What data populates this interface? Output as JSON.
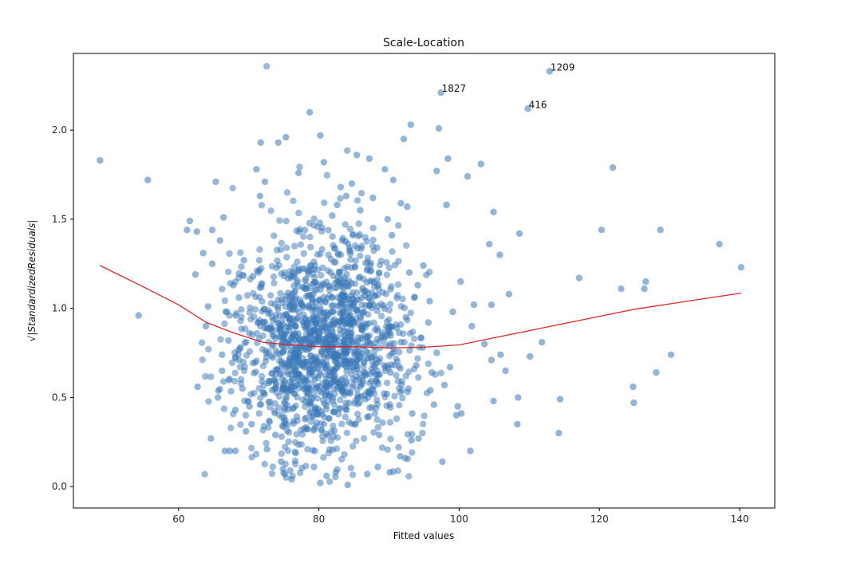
{
  "chart_data": {
    "type": "scatter",
    "title": "Scale-Location",
    "xlabel": "Fitted values",
    "ylabel": "√|StandardizedResiduals|",
    "xlim": [
      45,
      145
    ],
    "ylim": [
      -0.12,
      2.43
    ],
    "xticks": [
      60,
      80,
      100,
      120,
      140
    ],
    "xtick_labels": [
      "60",
      "80",
      "100",
      "120",
      "140"
    ],
    "yticks": [
      0.0,
      0.5,
      1.0,
      1.5,
      2.0
    ],
    "ytick_labels": [
      "0.0",
      "0.5",
      "1.0",
      "1.5",
      "2.0"
    ],
    "grid": false,
    "colors": {
      "points": "#3a78b8",
      "lowess": "#d62728",
      "axes": "#000000"
    },
    "series": [
      {
        "kind": "scatter",
        "points": [
          [
            48.8,
            1.83
          ],
          [
            55.6,
            1.72
          ],
          [
            54.3,
            0.96
          ],
          [
            61.6,
            1.49
          ],
          [
            61.2,
            1.44
          ],
          [
            62.6,
            1.43
          ],
          [
            64.8,
            1.44
          ],
          [
            65.3,
            1.71
          ],
          [
            62.4,
            1.19
          ],
          [
            63.5,
            1.31
          ],
          [
            64.2,
            1.01
          ],
          [
            63.9,
            0.9
          ],
          [
            62.7,
            0.56
          ],
          [
            64.8,
            1.25
          ],
          [
            66.4,
            1.51
          ],
          [
            65.9,
            1.38
          ],
          [
            64.6,
            0.27
          ],
          [
            66.6,
            0.2
          ],
          [
            67.3,
            0.2
          ],
          [
            68.1,
            0.2
          ],
          [
            65.6,
            0.5
          ],
          [
            66.2,
            0.65
          ],
          [
            67.1,
            0.82
          ],
          [
            68.6,
            0.71
          ],
          [
            69.6,
            0.31
          ],
          [
            70.1,
            0.45
          ],
          [
            71.7,
            1.93
          ],
          [
            71.1,
            1.78
          ],
          [
            72.3,
            1.71
          ],
          [
            71.6,
            1.63
          ],
          [
            74.2,
            1.93
          ],
          [
            75.3,
            1.96
          ],
          [
            77.1,
            1.76
          ],
          [
            78.7,
            2.1
          ],
          [
            80.2,
            1.97
          ],
          [
            80.7,
            1.82
          ],
          [
            83.1,
            1.68
          ],
          [
            85.4,
            1.86
          ],
          [
            87.2,
            1.84
          ],
          [
            89.4,
            1.78
          ],
          [
            90.6,
            1.72
          ],
          [
            92.1,
            1.95
          ],
          [
            93.1,
            2.03
          ],
          [
            97.1,
            2.01
          ],
          [
            96.8,
            1.77
          ],
          [
            98.4,
            1.84
          ],
          [
            98.2,
            1.58
          ],
          [
            101.2,
            1.74
          ],
          [
            103.1,
            1.81
          ],
          [
            104.9,
            1.54
          ],
          [
            104.3,
            1.36
          ],
          [
            105.8,
            1.3
          ],
          [
            108.6,
            1.42
          ],
          [
            107.1,
            1.08
          ],
          [
            100.2,
            1.15
          ],
          [
            102.1,
            1.02
          ],
          [
            104.6,
            1.02
          ],
          [
            101.8,
            0.9
          ],
          [
            103.6,
            0.8
          ],
          [
            104.6,
            0.71
          ],
          [
            105.9,
            0.74
          ],
          [
            106.6,
            0.65
          ],
          [
            110.1,
            0.73
          ],
          [
            111.8,
            0.81
          ],
          [
            104.9,
            0.48
          ],
          [
            108.4,
            0.5
          ],
          [
            108.3,
            0.35
          ],
          [
            114.4,
            0.49
          ],
          [
            114.2,
            0.3
          ],
          [
            112.9,
            2.33
          ],
          [
            97.4,
            2.21
          ],
          [
            109.8,
            2.12
          ],
          [
            121.9,
            1.79
          ],
          [
            120.3,
            1.44
          ],
          [
            117.1,
            1.17
          ],
          [
            123.1,
            1.11
          ],
          [
            126.4,
            1.11
          ],
          [
            126.6,
            1.15
          ],
          [
            128.7,
            1.44
          ],
          [
            137.1,
            1.36
          ],
          [
            140.2,
            1.23
          ],
          [
            124.8,
            0.56
          ],
          [
            124.9,
            0.47
          ],
          [
            128.1,
            0.64
          ],
          [
            130.2,
            0.74
          ],
          [
            101.6,
            0.2
          ],
          [
            97.6,
            0.14
          ],
          [
            99.6,
            0.4
          ],
          [
            100.3,
            0.41
          ],
          [
            99.8,
            0.45
          ],
          [
            97.9,
            0.57
          ],
          [
            96.8,
            0.75
          ],
          [
            98.7,
            0.67
          ],
          [
            99.1,
            0.98
          ],
          [
            95.8,
            1.04
          ],
          [
            94.9,
            1.24
          ],
          [
            95.9,
            0.54
          ],
          [
            96.4,
            0.46
          ],
          [
            91.6,
            0.17
          ],
          [
            93.2,
            0.26
          ],
          [
            90.1,
            0.08
          ],
          [
            88.4,
            0.11
          ],
          [
            86.9,
            0.07
          ],
          [
            84.1,
            0.01
          ],
          [
            80.2,
            0.02
          ],
          [
            79.3,
            0.11
          ],
          [
            81.1,
            0.06
          ],
          [
            82.4,
            0.08
          ],
          [
            76.1,
            0.04
          ],
          [
            74.6,
            0.14
          ],
          [
            72.6,
            0.21
          ],
          [
            73.8,
            0.29
          ],
          [
            75.9,
            0.09
          ],
          [
            70.4,
            0.35
          ],
          [
            69.1,
            0.55
          ],
          [
            68.1,
            0.43
          ],
          [
            66.9,
            0.98
          ],
          [
            68.6,
            1.06
          ],
          [
            69.3,
            1.27
          ],
          [
            70.6,
            1.18
          ],
          [
            67.8,
            1.13
          ],
          [
            66.2,
            0.74
          ],
          [
            71.9,
            0.59
          ],
          [
            70.1,
            0.86
          ],
          [
            88.3,
            1.34
          ],
          [
            87.7,
            1.62
          ],
          [
            89.8,
            1.5
          ],
          [
            90.4,
            1.41
          ],
          [
            91.7,
            1.59
          ],
          [
            92.6,
            1.57
          ],
          [
            85.9,
            1.55
          ],
          [
            84.7,
            1.7
          ],
          [
            83.9,
            1.63
          ],
          [
            82.6,
            1.58
          ],
          [
            81.9,
            1.52
          ],
          [
            86.9,
            0.39
          ],
          [
            88.6,
            0.29
          ],
          [
            89.7,
            0.52
          ],
          [
            90.2,
            0.64
          ],
          [
            91.7,
            0.81
          ],
          [
            92.4,
            0.95
          ],
          [
            93.6,
            1.06
          ],
          [
            93.9,
            0.68
          ],
          [
            93.3,
            0.41
          ],
          [
            94.2,
            0.27
          ],
          [
            94.8,
            0.78
          ],
          [
            95.6,
            0.92
          ],
          [
            96.1,
            0.64
          ],
          [
            92.9,
            1.2
          ],
          [
            94.1,
            1.13
          ]
        ]
      },
      {
        "kind": "line",
        "name": "lowess",
        "points": [
          [
            48.8,
            1.24
          ],
          [
            55,
            1.12
          ],
          [
            60,
            1.02
          ],
          [
            64,
            0.92
          ],
          [
            68,
            0.86
          ],
          [
            72,
            0.81
          ],
          [
            76,
            0.795
          ],
          [
            80,
            0.785
          ],
          [
            85,
            0.785
          ],
          [
            90,
            0.778
          ],
          [
            95,
            0.782
          ],
          [
            100,
            0.795
          ],
          [
            105,
            0.835
          ],
          [
            110,
            0.875
          ],
          [
            115,
            0.915
          ],
          [
            120,
            0.955
          ],
          [
            125,
            0.995
          ],
          [
            130,
            1.025
          ],
          [
            135,
            1.055
          ],
          [
            140.2,
            1.085
          ]
        ]
      }
    ],
    "annotations": [
      {
        "text": "1209",
        "x": 112.9,
        "y": 2.33
      },
      {
        "text": "1827",
        "x": 97.4,
        "y": 2.21
      },
      {
        "text": "416",
        "x": 109.8,
        "y": 2.12
      }
    ]
  }
}
